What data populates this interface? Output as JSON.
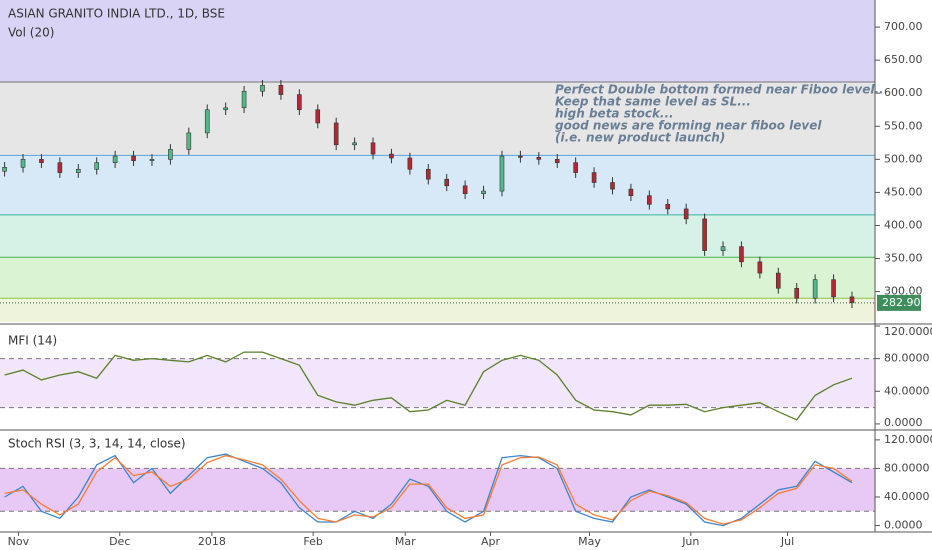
{
  "chart_data": [
    {
      "type": "candlestick",
      "title": "ASIAN GRANITO INDIA LTD., 1D, BSE",
      "subtitle": "Vol (20)",
      "annotations": [
        "Perfect Double bottom formed near Fiboo level..",
        "Keep that same level as SL...",
        "high beta stock...",
        "good news are forming near fiboo level",
        " (i.e. new product  launch)"
      ],
      "x": [
        1,
        5,
        9,
        13,
        17,
        21,
        25,
        29,
        33,
        37,
        41,
        45,
        49,
        53,
        57,
        61,
        65,
        69,
        73,
        77,
        81,
        85,
        89,
        93,
        97,
        101,
        105,
        109,
        113,
        117,
        121,
        125,
        129,
        133,
        137,
        141,
        145,
        149,
        153,
        157,
        161,
        165,
        169,
        173,
        177,
        181,
        185
      ],
      "open": [
        482,
        488,
        500,
        495,
        480,
        485,
        495,
        505,
        498,
        500,
        515,
        540,
        575,
        578,
        603,
        612,
        598,
        575,
        555,
        522,
        525,
        508,
        502,
        485,
        470,
        460,
        448,
        452,
        505,
        503,
        500,
        495,
        480,
        465,
        455,
        445,
        432,
        425,
        410,
        362,
        368,
        345,
        328,
        305,
        290,
        318,
        292
      ],
      "high": [
        496,
        508,
        508,
        503,
        493,
        503,
        513,
        513,
        508,
        523,
        548,
        583,
        586,
        611,
        620,
        620,
        606,
        583,
        563,
        533,
        533,
        516,
        510,
        493,
        478,
        468,
        460,
        513,
        513,
        511,
        508,
        503,
        488,
        473,
        463,
        453,
        440,
        433,
        418,
        376,
        376,
        353,
        336,
        313,
        326,
        326,
        300
      ],
      "low": [
        474,
        480,
        487,
        472,
        472,
        477,
        487,
        490,
        490,
        492,
        507,
        532,
        567,
        570,
        595,
        590,
        567,
        547,
        514,
        514,
        500,
        494,
        477,
        462,
        452,
        440,
        440,
        444,
        495,
        492,
        487,
        472,
        457,
        447,
        437,
        424,
        417,
        402,
        354,
        354,
        337,
        320,
        297,
        282,
        282,
        284,
        275
      ],
      "close": [
        488,
        500,
        495,
        480,
        485,
        495,
        505,
        498,
        500,
        515,
        540,
        575,
        578,
        603,
        612,
        598,
        575,
        555,
        522,
        525,
        508,
        502,
        485,
        470,
        460,
        448,
        452,
        505,
        503,
        500,
        495,
        480,
        465,
        455,
        445,
        432,
        425,
        410,
        362,
        368,
        345,
        328,
        305,
        290,
        318,
        292,
        283
      ],
      "up_color": "#53b987",
      "down_color": "#b22833",
      "levels": [
        617,
        506,
        416,
        352,
        290
      ],
      "level_colors": [
        "#d9d4f5",
        "#e6e6e6",
        "#d7e9f6",
        "#d6f1e6",
        "#d9f3d3",
        "#eef4dc"
      ],
      "level_line_colors": [
        "#777777",
        "#5aa4d6",
        "#3cb39a",
        "#4caf50",
        "#8bc34a"
      ],
      "last_price": {
        "value": 282.9,
        "label": "282.90"
      },
      "last_price_color": "#3f8d5c",
      "xlim": [
        0,
        190
      ],
      "ylim": [
        254,
        741
      ],
      "yticks": [
        {
          "value": 300,
          "label": "300.00"
        },
        {
          "value": 350,
          "label": "350.00"
        },
        {
          "value": 400,
          "label": "400.00"
        },
        {
          "value": 450,
          "label": "450.00"
        },
        {
          "value": 500,
          "label": "500.00"
        },
        {
          "value": 550,
          "label": "550.00"
        },
        {
          "value": 600,
          "label": "600.00"
        },
        {
          "value": 650,
          "label": "650.00"
        },
        {
          "value": 700,
          "label": "700.00"
        }
      ]
    },
    {
      "type": "line",
      "title": "MFI (14)",
      "x": [
        1,
        5,
        9,
        13,
        17,
        21,
        25,
        29,
        33,
        37,
        41,
        45,
        49,
        53,
        57,
        61,
        65,
        69,
        73,
        77,
        81,
        85,
        89,
        93,
        97,
        101,
        105,
        109,
        113,
        117,
        121,
        125,
        129,
        133,
        137,
        141,
        145,
        149,
        153,
        157,
        161,
        165,
        169,
        173,
        177,
        181,
        185
      ],
      "series": [
        {
          "color": "#5b7f2a",
          "values": [
            60,
            66,
            54,
            60,
            64,
            56,
            84,
            78,
            80,
            78,
            76,
            84,
            76,
            88,
            88,
            80,
            72,
            35,
            27,
            23,
            29,
            32,
            15,
            17,
            29,
            23,
            64,
            78,
            84,
            78,
            60,
            29,
            17,
            15,
            11,
            23,
            23,
            24,
            15,
            20,
            23,
            26,
            15,
            5,
            35,
            48,
            56
          ]
        }
      ],
      "band": [
        20,
        80
      ],
      "band_color": "#f1e6fb",
      "xlim": [
        0,
        190
      ],
      "ylim": [
        -5,
        120
      ],
      "yticks": [
        {
          "value": 0,
          "label": "0.0000"
        },
        {
          "value": 40,
          "label": "40.0000"
        },
        {
          "value": 80,
          "label": "80.0000"
        },
        {
          "value": 120,
          "label": "120.0000"
        }
      ]
    },
    {
      "type": "line",
      "title": "Stoch RSI (3, 3, 14, 14, close)",
      "x": [
        1,
        5,
        9,
        13,
        17,
        21,
        25,
        29,
        33,
        37,
        41,
        45,
        49,
        53,
        57,
        61,
        65,
        69,
        73,
        77,
        81,
        85,
        89,
        93,
        97,
        101,
        105,
        109,
        113,
        117,
        121,
        125,
        129,
        133,
        137,
        141,
        145,
        149,
        153,
        157,
        161,
        165,
        169,
        173,
        177,
        181,
        185
      ],
      "series": [
        {
          "color": "#3d85c6",
          "values": [
            40,
            55,
            20,
            10,
            40,
            85,
            98,
            60,
            80,
            45,
            70,
            95,
            100,
            90,
            80,
            60,
            25,
            5,
            5,
            20,
            10,
            30,
            65,
            55,
            20,
            5,
            20,
            95,
            98,
            95,
            80,
            20,
            10,
            5,
            40,
            50,
            40,
            30,
            5,
            0,
            10,
            30,
            50,
            55,
            90,
            75,
            60
          ]
        },
        {
          "color": "#f57c34",
          "values": [
            45,
            50,
            30,
            15,
            30,
            75,
            95,
            70,
            75,
            55,
            65,
            88,
            98,
            92,
            85,
            65,
            35,
            10,
            5,
            15,
            12,
            25,
            58,
            58,
            25,
            10,
            15,
            85,
            95,
            96,
            85,
            30,
            15,
            8,
            35,
            48,
            42,
            32,
            10,
            2,
            8,
            25,
            45,
            52,
            85,
            80,
            62
          ]
        }
      ],
      "band": [
        20,
        80
      ],
      "band_color": "#e8c9f5",
      "xlim": [
        0,
        190
      ],
      "ylim": [
        -9,
        131
      ],
      "yticks": [
        {
          "value": 0,
          "label": "0.0000"
        },
        {
          "value": 40,
          "label": "40.0000"
        },
        {
          "value": 80,
          "label": "80.0000"
        },
        {
          "value": 120,
          "label": "120.0000"
        }
      ],
      "xticks": [
        {
          "value": 4,
          "label": "Nov"
        },
        {
          "value": 26,
          "label": "Dec"
        },
        {
          "value": 46,
          "label": "2018"
        },
        {
          "value": 68,
          "label": "Feb"
        },
        {
          "value": 88,
          "label": "Mar"
        },
        {
          "value": 106.5,
          "label": "Apr"
        },
        {
          "value": 128,
          "label": "May"
        },
        {
          "value": 150,
          "label": "Jun"
        },
        {
          "value": 171,
          "label": "Jul"
        }
      ]
    }
  ]
}
